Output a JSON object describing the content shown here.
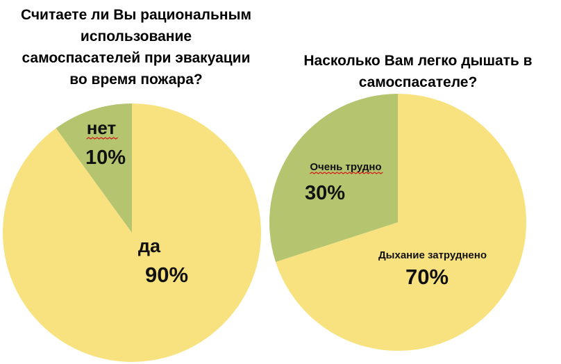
{
  "chart_data": [
    {
      "type": "pie",
      "title_lines": [
        "Считаете ли Вы рациональным",
        "использование",
        "самоспасателей при эвакуации",
        "во время пожара?"
      ],
      "slices": [
        {
          "label": "да",
          "value": 90,
          "value_label": "90%",
          "color": "#f8e27f"
        },
        {
          "label": "нет",
          "value": 10,
          "value_label": "10%",
          "color": "#b5c46f"
        }
      ]
    },
    {
      "type": "pie",
      "title_lines": [
        "Насколько Вам легко дышать в",
        "самоспасателе?"
      ],
      "slices": [
        {
          "label": "Дыхание затруднено",
          "value": 70,
          "value_label": "70%",
          "color": "#f8e27f"
        },
        {
          "label": "Очень трудно",
          "value": 30,
          "value_label": "30%",
          "color": "#b5c46f"
        }
      ]
    }
  ]
}
